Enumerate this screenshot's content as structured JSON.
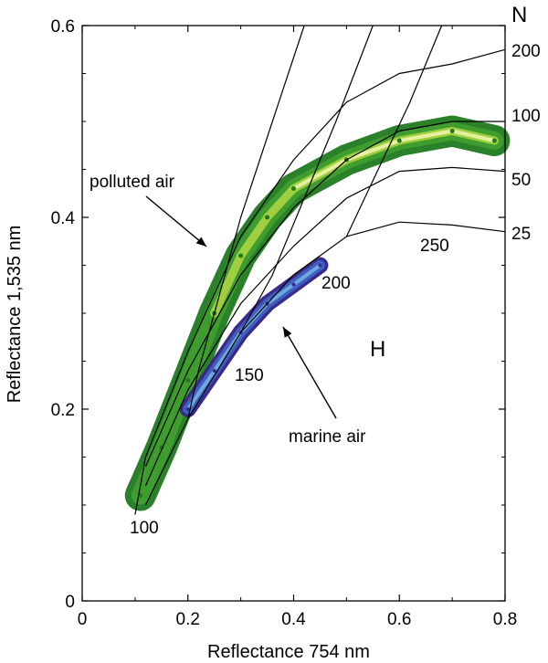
{
  "chart_data": {
    "type": "scatter",
    "xlabel": "Reflectance 754 nm",
    "ylabel": "Reflectance 1,535 nm",
    "xlim": [
      0,
      0.8
    ],
    "ylim": [
      0,
      0.6
    ],
    "x_ticks": [
      "0",
      "0.2",
      "0.4",
      "0.6",
      "0.8"
    ],
    "y_ticks": [
      "0",
      "0.2",
      "0.4",
      "0.6"
    ],
    "x_tick_values": [
      0,
      0.2,
      0.4,
      0.6,
      0.8
    ],
    "y_tick_values": [
      0,
      0.2,
      0.4,
      0.6
    ],
    "grid": false,
    "colors": {
      "polluted_dark": "#1f7a1f",
      "polluted_mid": "#3f9d2f",
      "polluted_light": "#9fcf3f",
      "polluted_highlight": "#e6f0a0",
      "marine_dark": "#3a2a8a",
      "marine_mid": "#3f5fc0",
      "marine_light": "#6fa8dc",
      "lines": "#000000"
    },
    "labels": {
      "N_header": "N",
      "N_values": [
        "200",
        "100",
        "50",
        "25"
      ],
      "H_label": "H",
      "H_values": [
        "100",
        "150",
        "200",
        "250"
      ],
      "polluted": "polluted air",
      "marine": "marine air"
    },
    "series": [
      {
        "name": "polluted air",
        "points": [
          [
            0.11,
            0.11
          ],
          [
            0.15,
            0.16
          ],
          [
            0.2,
            0.23
          ],
          [
            0.25,
            0.3
          ],
          [
            0.3,
            0.36
          ],
          [
            0.35,
            0.4
          ],
          [
            0.4,
            0.43
          ],
          [
            0.5,
            0.46
          ],
          [
            0.6,
            0.48
          ],
          [
            0.7,
            0.49
          ],
          [
            0.78,
            0.48
          ]
        ]
      },
      {
        "name": "marine air",
        "points": [
          [
            0.2,
            0.2
          ],
          [
            0.25,
            0.24
          ],
          [
            0.3,
            0.28
          ],
          [
            0.35,
            0.31
          ],
          [
            0.4,
            0.33
          ],
          [
            0.45,
            0.35
          ]
        ]
      }
    ],
    "grid_lines_N": [
      {
        "label": "25",
        "points": [
          [
            0.12,
            0.1
          ],
          [
            0.2,
            0.19
          ],
          [
            0.3,
            0.28
          ],
          [
            0.4,
            0.34
          ],
          [
            0.5,
            0.38
          ],
          [
            0.6,
            0.395
          ],
          [
            0.7,
            0.392
          ],
          [
            0.8,
            0.385
          ]
        ]
      },
      {
        "label": "50",
        "points": [
          [
            0.12,
            0.12
          ],
          [
            0.2,
            0.22
          ],
          [
            0.3,
            0.31
          ],
          [
            0.4,
            0.37
          ],
          [
            0.5,
            0.42
          ],
          [
            0.6,
            0.448
          ],
          [
            0.7,
            0.452
          ],
          [
            0.8,
            0.448
          ]
        ]
      },
      {
        "label": "100",
        "points": [
          [
            0.12,
            0.14
          ],
          [
            0.2,
            0.24
          ],
          [
            0.3,
            0.34
          ],
          [
            0.4,
            0.41
          ],
          [
            0.5,
            0.46
          ],
          [
            0.6,
            0.49
          ],
          [
            0.7,
            0.5
          ],
          [
            0.8,
            0.5
          ]
        ]
      },
      {
        "label": "200",
        "points": [
          [
            0.12,
            0.15
          ],
          [
            0.2,
            0.26
          ],
          [
            0.3,
            0.38
          ],
          [
            0.4,
            0.46
          ],
          [
            0.5,
            0.52
          ],
          [
            0.6,
            0.55
          ],
          [
            0.7,
            0.56
          ],
          [
            0.8,
            0.575
          ]
        ]
      }
    ],
    "grid_lines_H": [
      {
        "label": "100",
        "points": [
          [
            0.1,
            0.09
          ],
          [
            0.12,
            0.15
          ]
        ]
      },
      {
        "label": "150",
        "points": [
          [
            0.2,
            0.19
          ],
          [
            0.22,
            0.24
          ],
          [
            0.26,
            0.32
          ],
          [
            0.3,
            0.4
          ],
          [
            0.36,
            0.5
          ],
          [
            0.42,
            0.6
          ]
        ]
      },
      {
        "label": "200",
        "points": [
          [
            0.3,
            0.28
          ],
          [
            0.36,
            0.34
          ],
          [
            0.42,
            0.42
          ],
          [
            0.48,
            0.5
          ],
          [
            0.55,
            0.6
          ]
        ]
      },
      {
        "label": "250",
        "points": [
          [
            0.5,
            0.38
          ],
          [
            0.56,
            0.45
          ],
          [
            0.62,
            0.52
          ],
          [
            0.68,
            0.6
          ]
        ]
      }
    ]
  }
}
